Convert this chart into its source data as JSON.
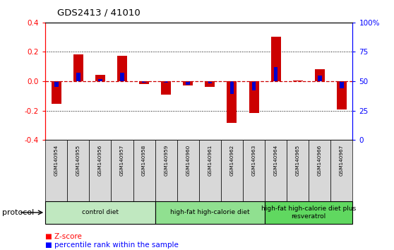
{
  "title": "GDS2413 / 41010",
  "samples": [
    "GSM140954",
    "GSM140955",
    "GSM140956",
    "GSM140957",
    "GSM140958",
    "GSM140959",
    "GSM140960",
    "GSM140961",
    "GSM140962",
    "GSM140963",
    "GSM140964",
    "GSM140965",
    "GSM140966",
    "GSM140967"
  ],
  "z_scores": [
    -0.155,
    0.185,
    0.045,
    0.175,
    -0.02,
    -0.09,
    -0.03,
    -0.04,
    -0.285,
    -0.215,
    0.305,
    0.005,
    0.08,
    -0.19
  ],
  "pct_ranks": [
    45,
    57,
    52,
    57,
    49,
    49,
    47,
    48,
    39,
    42,
    62,
    50,
    55,
    44
  ],
  "groups": [
    {
      "label": "control diet",
      "start": 0,
      "end": 5,
      "color": "#c0e8c0"
    },
    {
      "label": "high-fat high-calorie diet",
      "start": 5,
      "end": 10,
      "color": "#90e090"
    },
    {
      "label": "high-fat high-calorie diet plus\nresveratrol",
      "start": 10,
      "end": 14,
      "color": "#60d860"
    }
  ],
  "ylim": [
    -0.4,
    0.4
  ],
  "yticks_left": [
    -0.4,
    -0.2,
    0.0,
    0.2,
    0.4
  ],
  "yticks_right": [
    0,
    25,
    50,
    75,
    100
  ],
  "bar_width": 0.45,
  "pct_bar_width": 0.18,
  "z_color": "#cc0000",
  "pct_color": "#0000cc",
  "zero_line_color": "#cc0000",
  "sample_box_color": "#d8d8d8",
  "protocol_label": "protocol",
  "legend_z": "Z-score",
  "legend_pct": "percentile rank within the sample"
}
